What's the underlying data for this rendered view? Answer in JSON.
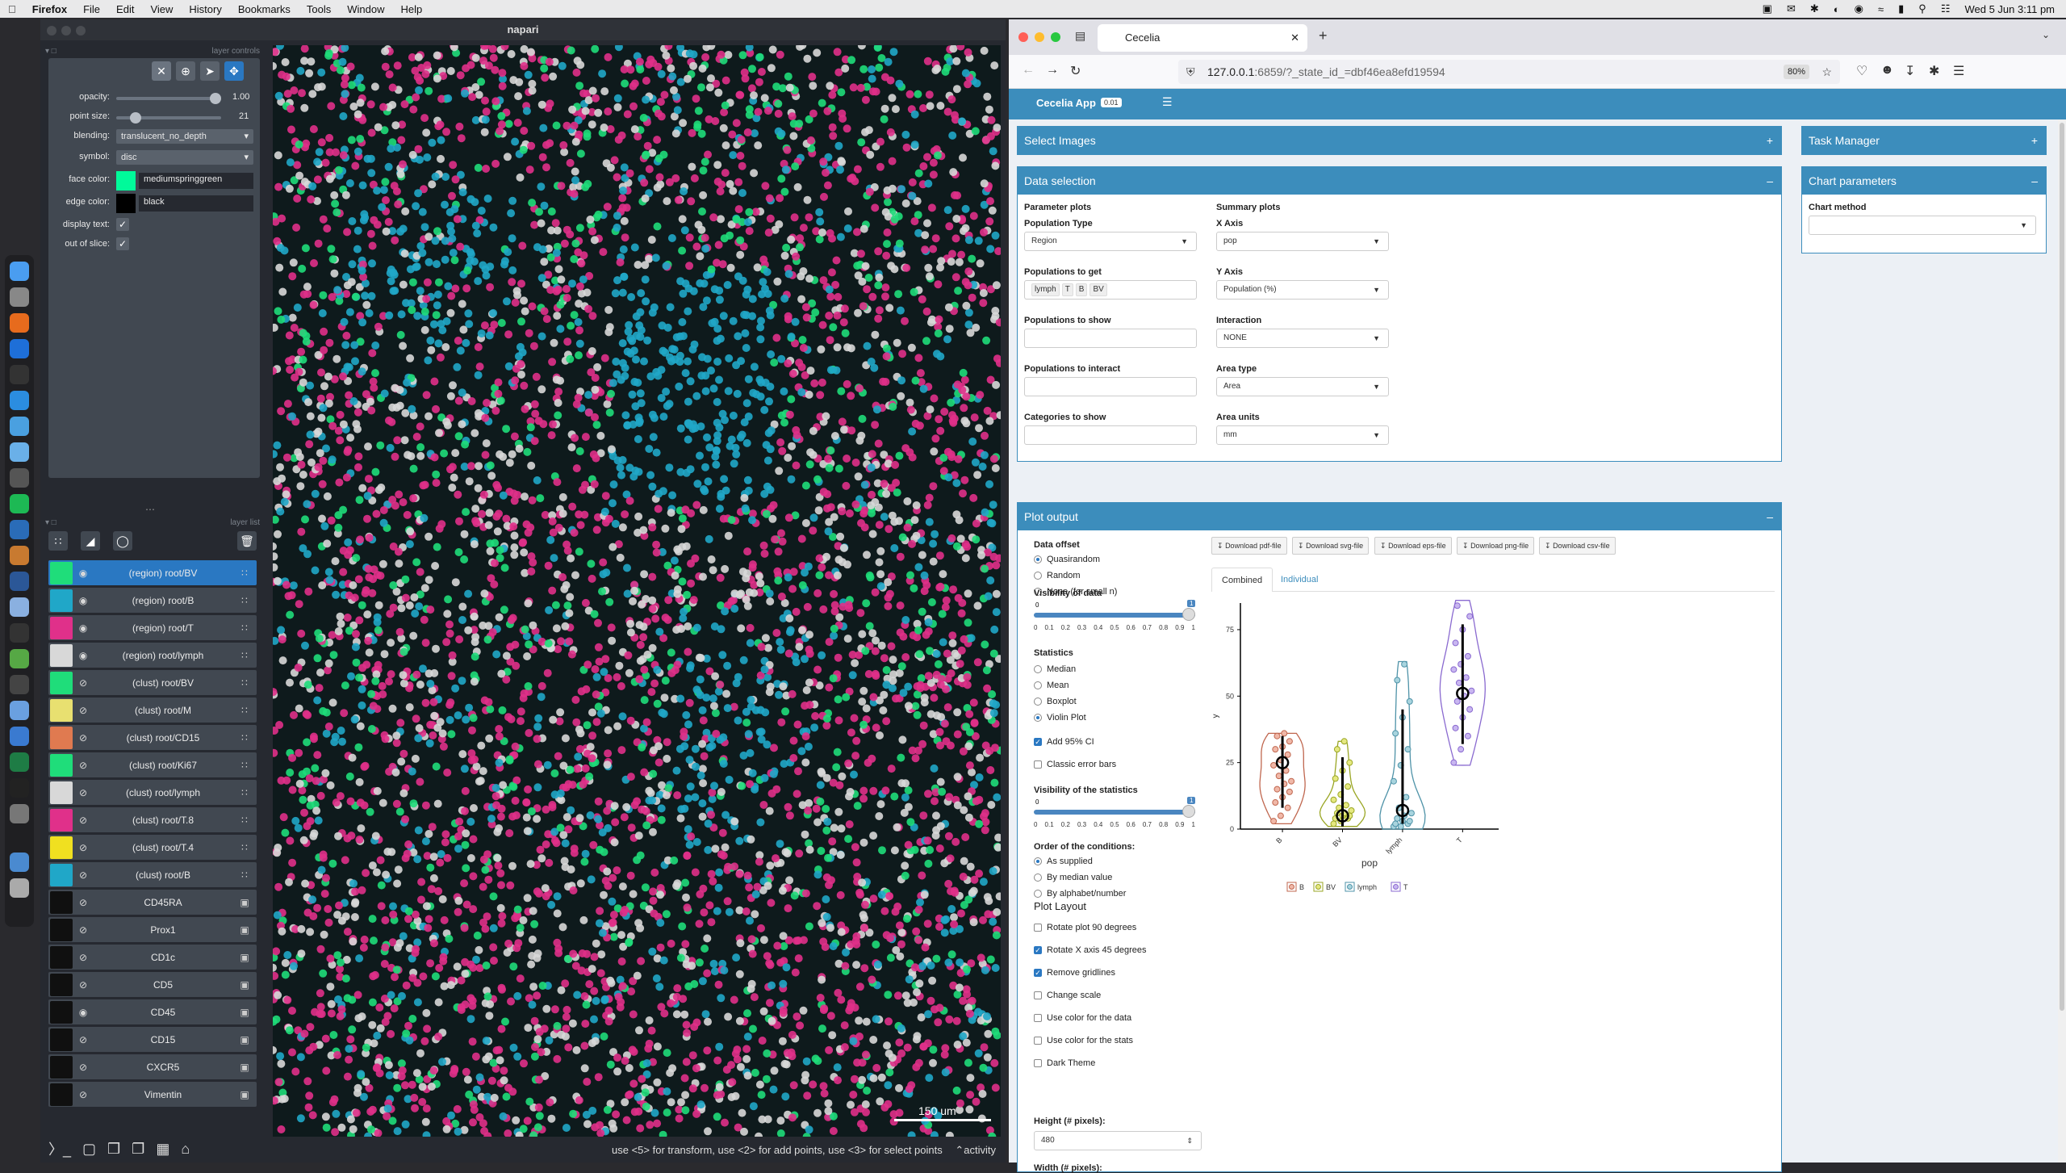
{
  "menubar": {
    "app": "Firefox",
    "items": [
      "File",
      "Edit",
      "View",
      "History",
      "Bookmarks",
      "Tools",
      "Window",
      "Help"
    ],
    "datetime": "Wed 5 Jun  3:11 pm"
  },
  "napari": {
    "title": "napari",
    "layer_controls_header": "layer controls",
    "layer_list_header": "layer list",
    "controls": {
      "opacity_label": "opacity:",
      "opacity_value": "1.00",
      "opacity_fraction": 1.0,
      "point_size_label": "point size:",
      "point_size_value": "21",
      "point_size_fraction": 0.15,
      "blending_label": "blending:",
      "blending_value": "translucent_no_depth",
      "symbol_label": "symbol:",
      "symbol_value": "disc",
      "face_color_label": "face color:",
      "face_color_value": "mediumspringgreen",
      "face_color_hex": "#00fa9a",
      "edge_color_label": "edge color:",
      "edge_color_value": "black",
      "edge_color_hex": "#000000",
      "display_text_label": "display text:",
      "out_of_slice_label": "out of slice:"
    },
    "layers": [
      {
        "name": "(region) root/BV",
        "visible": true,
        "selected": true,
        "thumb": "#1fdd7a",
        "kind": "points"
      },
      {
        "name": "(region) root/B",
        "visible": true,
        "selected": false,
        "thumb": "#20a7c8",
        "kind": "points"
      },
      {
        "name": "(region) root/T",
        "visible": true,
        "selected": false,
        "thumb": "#e0308a",
        "kind": "points"
      },
      {
        "name": "(region) root/lymph",
        "visible": true,
        "selected": false,
        "thumb": "#d8d8d8",
        "kind": "points"
      },
      {
        "name": "(clust) root/BV",
        "visible": false,
        "selected": false,
        "thumb": "#1fdd7a",
        "kind": "points"
      },
      {
        "name": "(clust) root/M",
        "visible": false,
        "selected": false,
        "thumb": "#e8e070",
        "kind": "points"
      },
      {
        "name": "(clust) root/CD15",
        "visible": false,
        "selected": false,
        "thumb": "#e07a50",
        "kind": "points"
      },
      {
        "name": "(clust) root/Ki67",
        "visible": false,
        "selected": false,
        "thumb": "#1fdd7a",
        "kind": "points"
      },
      {
        "name": "(clust) root/lymph",
        "visible": false,
        "selected": false,
        "thumb": "#d8d8d8",
        "kind": "points"
      },
      {
        "name": "(clust) root/T.8",
        "visible": false,
        "selected": false,
        "thumb": "#e0308a",
        "kind": "points"
      },
      {
        "name": "(clust) root/T.4",
        "visible": false,
        "selected": false,
        "thumb": "#f0e020",
        "kind": "points"
      },
      {
        "name": "(clust) root/B",
        "visible": false,
        "selected": false,
        "thumb": "#20a7c8",
        "kind": "points"
      },
      {
        "name": "CD45RA",
        "visible": false,
        "selected": false,
        "thumb": "#101010",
        "kind": "image"
      },
      {
        "name": "Prox1",
        "visible": false,
        "selected": false,
        "thumb": "#101010",
        "kind": "image"
      },
      {
        "name": "CD1c",
        "visible": false,
        "selected": false,
        "thumb": "#101010",
        "kind": "image"
      },
      {
        "name": "CD5",
        "visible": false,
        "selected": false,
        "thumb": "#101010",
        "kind": "image"
      },
      {
        "name": "CD45",
        "visible": true,
        "selected": false,
        "thumb": "#101010",
        "kind": "image"
      },
      {
        "name": "CD15",
        "visible": false,
        "selected": false,
        "thumb": "#101010",
        "kind": "image"
      },
      {
        "name": "CXCR5",
        "visible": false,
        "selected": false,
        "thumb": "#101010",
        "kind": "image"
      },
      {
        "name": "Vimentin",
        "visible": false,
        "selected": false,
        "thumb": "#101010",
        "kind": "image"
      }
    ],
    "scale_bar": "150 um",
    "status": "use <5> for transform, use <2> for add points, use <3> for select points",
    "activity": "activity"
  },
  "browser": {
    "tab_title": "Cecelia",
    "url_host": "127.0.0.1",
    "url_rest": ":6859/?_state_id_=dbf46ea8efd19594",
    "zoom": "80%"
  },
  "app": {
    "name": "Cecelia App",
    "version": "0.01",
    "select_images": "Select Images",
    "task_manager": "Task Manager",
    "data_selection": "Data selection",
    "chart_parameters": "Chart parameters",
    "chart_method_label": "Chart method",
    "chart_method_value": "",
    "parameter_plots": "Parameter plots",
    "summary_plots": "Summary plots",
    "population_type_label": "Population Type",
    "population_type_value": "Region",
    "populations_to_get_label": "Populations to get",
    "populations_to_get_tags": [
      "lymph",
      "T",
      "B",
      "BV"
    ],
    "populations_to_show_label": "Populations to show",
    "populations_to_interact_label": "Populations to interact",
    "categories_to_show_label": "Categories to show",
    "x_axis_label": "X Axis",
    "x_axis_value": "pop",
    "y_axis_label": "Y Axis",
    "y_axis_value": "Population (%)",
    "interaction_label": "Interaction",
    "interaction_value": "NONE",
    "area_type_label": "Area type",
    "area_type_value": "Area",
    "area_units_label": "Area units",
    "area_units_value": "mm",
    "plot_output": "Plot output",
    "data_offset_label": "Data offset",
    "data_offset_options": [
      "Quasirandom",
      "Random",
      "None (for small n)"
    ],
    "data_offset_selected": 0,
    "visibility_data_label": "Visibility of data",
    "visibility_data_min": "0",
    "visibility_data_value": "1",
    "visibility_data_fraction": 1.0,
    "slider_ticks": [
      "0",
      "0.1",
      "0.2",
      "0.3",
      "0.4",
      "0.5",
      "0.6",
      "0.7",
      "0.8",
      "0.9",
      "1"
    ],
    "statistics_label": "Statistics",
    "statistics_options": [
      "Median",
      "Mean",
      "Boxplot",
      "Violin Plot"
    ],
    "statistics_selected": 3,
    "add_ci_label": "Add 95% CI",
    "add_ci_checked": true,
    "classic_error_label": "Classic error bars",
    "classic_error_checked": false,
    "visibility_stats_label": "Visibility of the statistics",
    "visibility_stats_min": "0",
    "visibility_stats_value": "1",
    "visibility_stats_fraction": 1.0,
    "order_label": "Order of the conditions:",
    "order_options": [
      "As supplied",
      "By median value",
      "By alphabet/number"
    ],
    "order_selected": 0,
    "plot_layout_label": "Plot Layout",
    "layout_options": [
      {
        "label": "Rotate plot 90 degrees",
        "checked": false
      },
      {
        "label": "Rotate X axis 45 degrees",
        "checked": true
      },
      {
        "label": "Remove gridlines",
        "checked": true
      },
      {
        "label": "Change scale",
        "checked": false
      },
      {
        "label": "Use color for the data",
        "checked": false
      },
      {
        "label": "Use color for the stats",
        "checked": false
      },
      {
        "label": "Dark Theme",
        "checked": false
      }
    ],
    "height_label": "Height (# pixels):",
    "height_value": "480",
    "width_label": "Width (# pixels):",
    "downloads": [
      "Download pdf-file",
      "Download svg-file",
      "Download eps-file",
      "Download png-file",
      "Download csv-file"
    ],
    "tabs": [
      "Combined",
      "Individual"
    ],
    "active_tab": 0
  },
  "chart_data": {
    "type": "violin",
    "categories": [
      "B",
      "BV",
      "lymph",
      "T"
    ],
    "xlabel": "pop",
    "ylabel": "y",
    "yticks": [
      0,
      25,
      50,
      75
    ],
    "ylim": [
      0,
      85
    ],
    "colors": {
      "B": "#c0674f",
      "BV": "#9aa624",
      "lymph": "#4f93a8",
      "T": "#8a6ad0"
    },
    "fills": {
      "B": "#f0b8a8",
      "BV": "#e5e880",
      "lymph": "#a8d4de",
      "T": "#c8b6f0"
    },
    "series": [
      {
        "name": "B",
        "points": [
          3,
          5,
          8,
          10,
          12,
          14,
          15,
          17,
          18,
          20,
          22,
          24,
          26,
          28,
          30,
          31,
          33,
          35,
          36
        ],
        "center": 25,
        "ci": [
          8,
          35
        ],
        "range": [
          2,
          36
        ]
      },
      {
        "name": "BV",
        "points": [
          2,
          3,
          4,
          4,
          5,
          5,
          6,
          6,
          7,
          8,
          9,
          11,
          13,
          16,
          19,
          22,
          25,
          30,
          33
        ],
        "center": 5,
        "ci": [
          1,
          27
        ],
        "range": [
          1,
          33
        ]
      },
      {
        "name": "lymph",
        "points": [
          1,
          1,
          2,
          2,
          3,
          3,
          4,
          5,
          6,
          8,
          12,
          18,
          24,
          30,
          36,
          42,
          48,
          56,
          62
        ],
        "center": 7,
        "ci": [
          2,
          45
        ],
        "range": [
          0,
          63
        ]
      },
      {
        "name": "T",
        "points": [
          25,
          30,
          35,
          38,
          42,
          45,
          48,
          50,
          52,
          55,
          57,
          60,
          62,
          65,
          70,
          75,
          80,
          84
        ],
        "center": 51,
        "ci": [
          32,
          77
        ],
        "range": [
          24,
          86
        ]
      }
    ],
    "legend": [
      "B",
      "BV",
      "lymph",
      "T"
    ],
    "legend_position": "bottom"
  }
}
